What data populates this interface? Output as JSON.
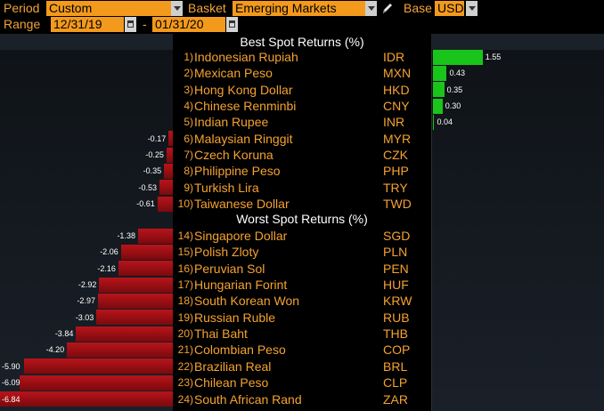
{
  "toolbar": {
    "period_label": "Period",
    "period_value": "Custom",
    "basket_label": "Basket",
    "basket_value": "Emerging Markets",
    "base_label": "Base",
    "base_value": "USD",
    "range_label": "Range",
    "range_start": "12/31/19",
    "range_sep": "-",
    "range_end": "01/31/20"
  },
  "colors": {
    "accent": "#f39a1c",
    "positive": "#19c41b",
    "negative": "#b8141a"
  },
  "best": {
    "title": "Best Spot Returns (%)",
    "rows": [
      {
        "rank": "1)",
        "name": "Indonesian Rupiah",
        "code": "IDR",
        "label": "1.55",
        "value": 1.55
      },
      {
        "rank": "2)",
        "name": "Mexican Peso",
        "code": "MXN",
        "label": "0.43",
        "value": 0.43
      },
      {
        "rank": "3)",
        "name": "Hong Kong Dollar",
        "code": "HKD",
        "label": "0.35",
        "value": 0.35
      },
      {
        "rank": "4)",
        "name": "Chinese Renminbi",
        "code": "CNY",
        "label": "0.30",
        "value": 0.3
      },
      {
        "rank": "5)",
        "name": "Indian Rupee",
        "code": "INR",
        "label": "0.04",
        "value": 0.04
      },
      {
        "rank": "6)",
        "name": "Malaysian Ringgit",
        "code": "MYR",
        "label": "-0.17",
        "value": -0.17
      },
      {
        "rank": "7)",
        "name": "Czech Koruna",
        "code": "CZK",
        "label": "-0.25",
        "value": -0.25
      },
      {
        "rank": "8)",
        "name": "Philippine Peso",
        "code": "PHP",
        "label": "-0.35",
        "value": -0.35
      },
      {
        "rank": "9)",
        "name": "Turkish Lira",
        "code": "TRY",
        "label": "-0.53",
        "value": -0.53
      },
      {
        "rank": "10)",
        "name": "Taiwanese Dollar",
        "code": "TWD",
        "label": "-0.61",
        "value": -0.61
      }
    ]
  },
  "worst": {
    "title": "Worst Spot Returns (%)",
    "rows": [
      {
        "rank": "14)",
        "name": "Singapore Dollar",
        "code": "SGD",
        "label": "-1.38",
        "value": -1.38
      },
      {
        "rank": "15)",
        "name": "Polish Zloty",
        "code": "PLN",
        "label": "-2.06",
        "value": -2.06
      },
      {
        "rank": "16)",
        "name": "Peruvian Sol",
        "code": "PEN",
        "label": "-2.16",
        "value": -2.16
      },
      {
        "rank": "17)",
        "name": "Hungarian Forint",
        "code": "HUF",
        "label": "-2.92",
        "value": -2.92
      },
      {
        "rank": "18)",
        "name": "South Korean Won",
        "code": "KRW",
        "label": "-2.97",
        "value": -2.97
      },
      {
        "rank": "19)",
        "name": "Russian Ruble",
        "code": "RUB",
        "label": "-3.03",
        "value": -3.03
      },
      {
        "rank": "20)",
        "name": "Thai Baht",
        "code": "THB",
        "label": "-3.84",
        "value": -3.84
      },
      {
        "rank": "21)",
        "name": "Colombian Peso",
        "code": "COP",
        "label": "-4.20",
        "value": -4.2
      },
      {
        "rank": "22)",
        "name": "Brazilian Real",
        "code": "BRL",
        "label": "-5.90",
        "value": -5.9
      },
      {
        "rank": "23)",
        "name": "Chilean Peso",
        "code": "CLP",
        "label": "-6.09",
        "value": -6.09
      },
      {
        "rank": "24)",
        "name": "South African Rand",
        "code": "ZAR",
        "label": "-6.84",
        "value": -6.84
      }
    ]
  }
}
